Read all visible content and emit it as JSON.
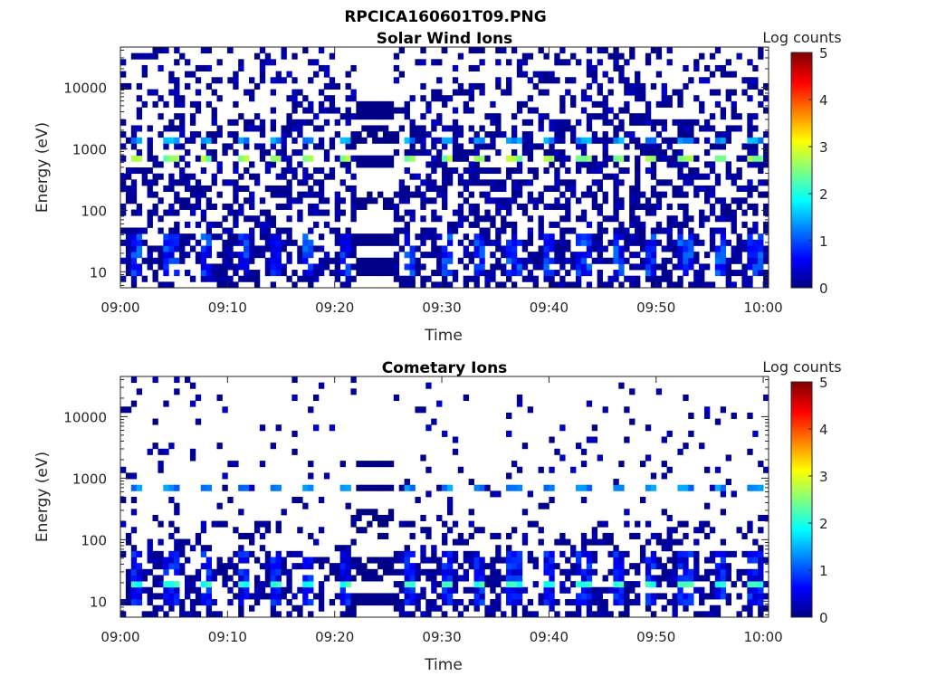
{
  "figure_title": "RPCICA160601T09.PNG",
  "chart_data": [
    {
      "type": "heatmap",
      "title": "Solar Wind Ions",
      "xlabel": "Time",
      "ylabel": "Energy (eV)",
      "x_tick_labels": [
        "09:00",
        "09:10",
        "09:20",
        "09:30",
        "09:40",
        "09:50",
        "10:00"
      ],
      "x_tick_minutes": [
        0,
        10,
        20,
        30,
        40,
        50,
        60
      ],
      "y_scale": "log",
      "y_tick_labels": [
        "10",
        "100",
        "1000",
        "10000"
      ],
      "y_tick_values": [
        10,
        100,
        1000,
        10000
      ],
      "ylim": [
        5.5,
        45000
      ],
      "xlim_minutes": [
        0,
        60.5
      ],
      "colorbar": {
        "label": "Log counts",
        "ticks": [
          "0",
          "1",
          "2",
          "3",
          "4",
          "5"
        ],
        "range": [
          0,
          5
        ],
        "colormap": "jet"
      },
      "features": {
        "cycle_start_minutes": [
          1.5,
          4.7,
          8.2,
          11.3,
          14.4,
          17.7,
          20.9,
          27.2,
          30.4,
          33.6,
          36.8,
          40.0,
          43.2,
          46.4,
          49.6,
          52.8,
          56.0,
          59.2
        ],
        "peak_energy_ev": 650,
        "peak_log_counts": 2.9,
        "secondary_energy_ev": 1300,
        "secondary_log_counts": 1.6,
        "low_energy_band_ev": [
          8,
          40
        ],
        "low_energy_log_counts": 1.2,
        "gap_minutes": [
          22,
          25.5
        ]
      }
    },
    {
      "type": "heatmap",
      "title": "Cometary Ions",
      "xlabel": "Time",
      "ylabel": "Energy (eV)",
      "x_tick_labels": [
        "09:00",
        "09:10",
        "09:20",
        "09:30",
        "09:40",
        "09:50",
        "10:00"
      ],
      "x_tick_minutes": [
        0,
        10,
        20,
        30,
        40,
        50,
        60
      ],
      "y_scale": "log",
      "y_tick_labels": [
        "10",
        "100",
        "1000",
        "10000"
      ],
      "y_tick_values": [
        10,
        100,
        1000,
        10000
      ],
      "ylim": [
        5.5,
        45000
      ],
      "xlim_minutes": [
        0,
        60.5
      ],
      "colorbar": {
        "label": "Log counts",
        "ticks": [
          "0",
          "1",
          "2",
          "3",
          "4",
          "5"
        ],
        "range": [
          0,
          5
        ],
        "colormap": "jet"
      },
      "features": {
        "cycle_start_minutes": [
          1.5,
          4.7,
          8.2,
          11.3,
          14.4,
          17.7,
          20.9,
          27.2,
          30.4,
          33.6,
          36.8,
          40.0,
          43.2,
          46.4,
          49.6,
          52.8,
          56.0,
          59.2
        ],
        "peak_energy_ev": 20,
        "peak_log_counts": 2.3,
        "secondary_energy_ev": 650,
        "secondary_log_counts": 1.5,
        "low_energy_band_ev": [
          8,
          60
        ],
        "low_energy_log_counts": 1.0,
        "gap_minutes": [
          22,
          25.5
        ]
      }
    }
  ]
}
